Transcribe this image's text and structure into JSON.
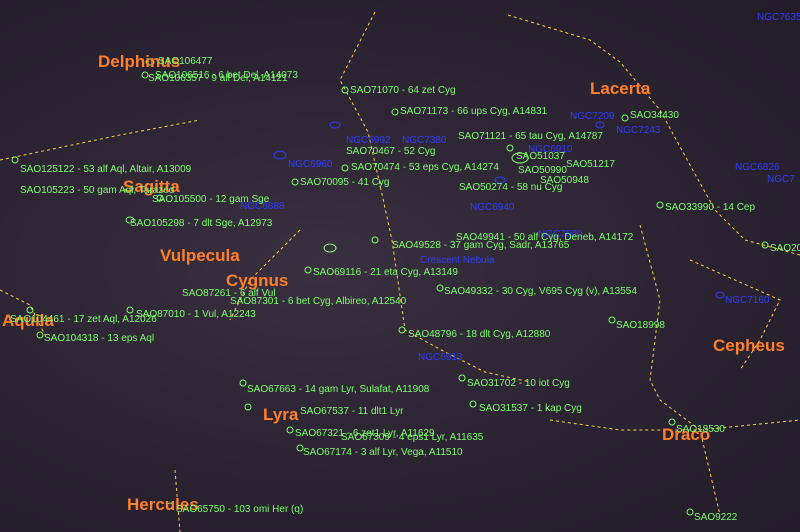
{
  "colors": {
    "background": "#2a2230",
    "constellation_label": "#ff7f2a",
    "star_label": "#7cff6a",
    "deep_sky_label": "#2f3cff",
    "boundary_line": "#ffd23a"
  },
  "constellations": [
    "Delphinus",
    "Sagitta",
    "Vulpecula",
    "Cygnus",
    "Aquila",
    "Lyra",
    "Hercules",
    "Lacerta",
    "Cepheus",
    "Draco"
  ],
  "deep_sky": [
    "NGC7635",
    "NGC7243",
    "NGC7209",
    "NGC6992",
    "NGC6960",
    "NGC6888",
    "Crescent Nebula",
    "NGC6940",
    "NGC6913",
    "NGC6826",
    "NGC6910",
    "NGC7000",
    "NGC7160",
    "NGC7380",
    "NGC7"
  ],
  "stars": [
    "SAO106477",
    "SAO106516 - 6 bet Del, A14073",
    "SAO106357 - 9 alf Del, A14121",
    "SAO125122 - 53 alf Aql, Altair, A13009",
    "SAO105223 - 50 gam Aql, Tarazed",
    "SAO105500 - 12 gam Sge",
    "SAO105298 - 7 dlt Sge, A12973",
    "SAO104461 - 17 zet Aql, A12026",
    "SAO104318 - 13 eps Aql",
    "SAO87261 - 6 alf Vul",
    "SAO87010 - 1 Vul, A12243",
    "SAO71070 - 64 zet Cyg",
    "SAO71173 - 66 ups Cyg, A14831",
    "SAO71121 - 65 tau Cyg, A14787",
    "SAO70467 - 52 Cyg",
    "SAO70474 - 53 eps Cyg, A14274",
    "SAO70095 - 41 Cyg",
    "SAO51037",
    "SAO51217",
    "SAO50274 - 58 nu Cyg",
    "SAO50990",
    "SAO50948",
    "SAO49941 - 50 alf Cyg, Deneb, A14172",
    "SAO49528 - 37 gam Cyg, Sadr, A13765",
    "SAO69116 - 21 eta Cyg, A13149",
    "SAO87301 - 6 bet Cyg, Albireo, A12540",
    "SAO49332 - 30 Cyg, V695 Cyg (v), A13554",
    "SAO48796 - 18 dlt Cyg, A12880",
    "SAO31702 - 10 iot Cyg",
    "SAO31537 - 1 kap Cyg",
    "SAO67663 - 14 gam Lyr, Sulafat, A11908",
    "SAO67537 - 11 dlt1 Lyr",
    "SAO67321 - 6 zet1 Lyr, A11629",
    "SAO67309 - 4 eps1 Lyr, A11635",
    "SAO67174 - 3 alf Lyr, Vega, A11510",
    "SAO65750 - 103 omi Her (q)",
    "SAO34430",
    "SAO33990 - 14 Cep",
    "SAO18998",
    "SAO18530",
    "SAO9222",
    "SAO20"
  ]
}
